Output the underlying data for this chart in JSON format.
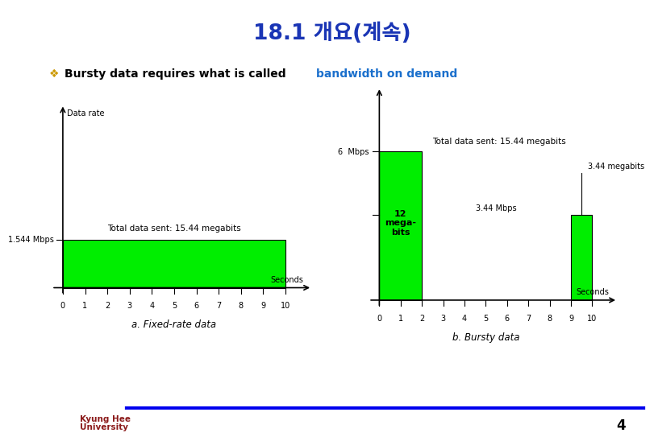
{
  "title": "18.1 개요(계속)",
  "title_color": "#1a35b5",
  "title_bg": "#ffff00",
  "bullet_text_black": "Bursty data requires what is called ",
  "bullet_text_blue": "bandwidth on demand",
  "bullet_color_blue": "#1a6fcc",
  "bg_color": "#ffffff",
  "footer_line_color": "#0000ee",
  "page_number": "4",
  "chart_a_label": "a. Fixed-rate data",
  "chart_b_label": "b. Bursty data",
  "chart_a_ylabel": "Data rate",
  "chart_a_rate_label": "1.544 Mbps",
  "chart_a_seconds_label": "Seconds",
  "chart_a_total_label": "Total data sent: 15.44 megabits",
  "chart_a_bar_color": "#00ee00",
  "chart_b_rate1_label": "6  Mbps",
  "chart_b_rate2_label": "3.44 Mbps",
  "chart_b_seconds_label": "Seconds",
  "chart_b_total_label": "Total data sent: 15.44 megabits",
  "chart_b_bar1_text": "12\nmega-\nbits",
  "chart_b_bar2_text": "3.44 megabits",
  "chart_b_bar_color": "#00ee00",
  "uni_text1": "Kyung Hee",
  "uni_text2": "University"
}
